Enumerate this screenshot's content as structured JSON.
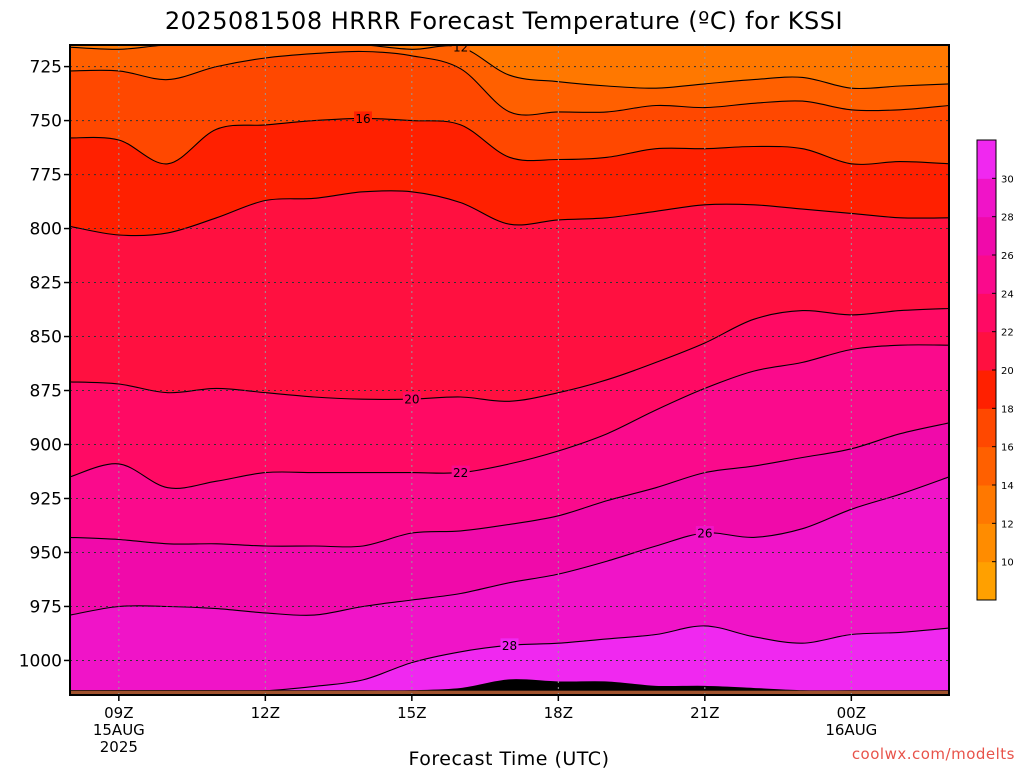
{
  "chart_data": {
    "type": "contour",
    "title": "2025081508 HRRR Forecast Temperature (ºC) for KSSI",
    "xlabel": "Forecast Time (UTC)",
    "ylabel": "",
    "credit": "coolwx.com/modelts",
    "x_hours": [
      8,
      9,
      10,
      11,
      12,
      13,
      14,
      15,
      16,
      17,
      18,
      19,
      20,
      21,
      22,
      23,
      24,
      25,
      26
    ],
    "x_ticks": [
      {
        "hour": 9,
        "lines": [
          "09Z",
          "15AUG",
          "2025"
        ]
      },
      {
        "hour": 12,
        "lines": [
          "12Z"
        ]
      },
      {
        "hour": 15,
        "lines": [
          "15Z"
        ]
      },
      {
        "hour": 18,
        "lines": [
          "18Z"
        ]
      },
      {
        "hour": 21,
        "lines": [
          "21Z"
        ]
      },
      {
        "hour": 24,
        "lines": [
          "00Z",
          "16AUG"
        ]
      }
    ],
    "y_ticks": [
      725,
      750,
      775,
      800,
      825,
      850,
      875,
      900,
      925,
      950,
      975,
      1000
    ],
    "ylim_hpa": [
      715,
      1016
    ],
    "ground_hpa": 1014,
    "contour_interval": 2,
    "contours": [
      {
        "value": 12,
        "label": "12",
        "label_hour": 16.0,
        "p": [
          716,
          717,
          715,
          715,
          715,
          715,
          715,
          717,
          716,
          729,
          732,
          734,
          735,
          733,
          731,
          730,
          735,
          734,
          733
        ]
      },
      {
        "value": 14,
        "label": "",
        "p": [
          727,
          727,
          731,
          725,
          721,
          719,
          718,
          720,
          726,
          746,
          746,
          746,
          743,
          744,
          742,
          741,
          745,
          745,
          743
        ]
      },
      {
        "value": 16,
        "label": "16",
        "label_hour": 14.0,
        "p": [
          758,
          759,
          770,
          754,
          752,
          750,
          749,
          750,
          752,
          767,
          768,
          767,
          763,
          763,
          762,
          763,
          770,
          769,
          770
        ]
      },
      {
        "value": 18,
        "label": "",
        "p": [
          799,
          803,
          802,
          795,
          787,
          786,
          783,
          783,
          788,
          798,
          796,
          795,
          792,
          789,
          789,
          791,
          793,
          795,
          795
        ]
      },
      {
        "value": 20,
        "label": "20",
        "label_hour": 15.0,
        "p": [
          871,
          872,
          876,
          874,
          876,
          878,
          879,
          879,
          878,
          880,
          876,
          870,
          862,
          853,
          842,
          838,
          840,
          838,
          837
        ]
      },
      {
        "value": 22,
        "label": "22",
        "label_hour": 16.0,
        "p": [
          915,
          909,
          920,
          917,
          913,
          913,
          913,
          913,
          913,
          909,
          903,
          895,
          884,
          874,
          866,
          862,
          856,
          854,
          854
        ]
      },
      {
        "value": 24,
        "label": "",
        "p": [
          943,
          944,
          946,
          946,
          947,
          947,
          947,
          941,
          940,
          937,
          933,
          926,
          920,
          913,
          910,
          906,
          902,
          895,
          890
        ]
      },
      {
        "value": 26,
        "label": "26",
        "label_hour": 21.0,
        "p": [
          979,
          975,
          975,
          976,
          978,
          979,
          975,
          972,
          969,
          964,
          960,
          954,
          947,
          941,
          943,
          939,
          930,
          923,
          915
        ]
      },
      {
        "value": 28,
        "label": "28",
        "label_hour": 17.0,
        "p": [
          1016,
          1016,
          1016,
          1016,
          1015,
          1012,
          1009,
          1001,
          996,
          993,
          992,
          990,
          988,
          984,
          989,
          992,
          988,
          987,
          985
        ]
      },
      {
        "value": 30,
        "label": "",
        "p": [
          1016,
          1016,
          1016,
          1016,
          1016,
          1016,
          1016,
          1016,
          1013,
          1009,
          1010,
          1010,
          1012,
          1012,
          1013,
          1016,
          1016,
          1016,
          1016
        ]
      }
    ],
    "colorbar": {
      "labels": [
        "30",
        "28",
        "26",
        "24",
        "22",
        "20",
        "18",
        "16",
        "14",
        "12",
        "10"
      ],
      "colors": [
        "#ffa000",
        "#ff8c00",
        "#ff7800",
        "#ff6000",
        "#ff4800",
        "#ff2000",
        "#ff1040",
        "#ff0a64",
        "#fa0a8c",
        "#f00aaa",
        "#f014c8",
        "#f028f0"
      ]
    },
    "colors": {
      "ground": "#a0522d"
    }
  }
}
